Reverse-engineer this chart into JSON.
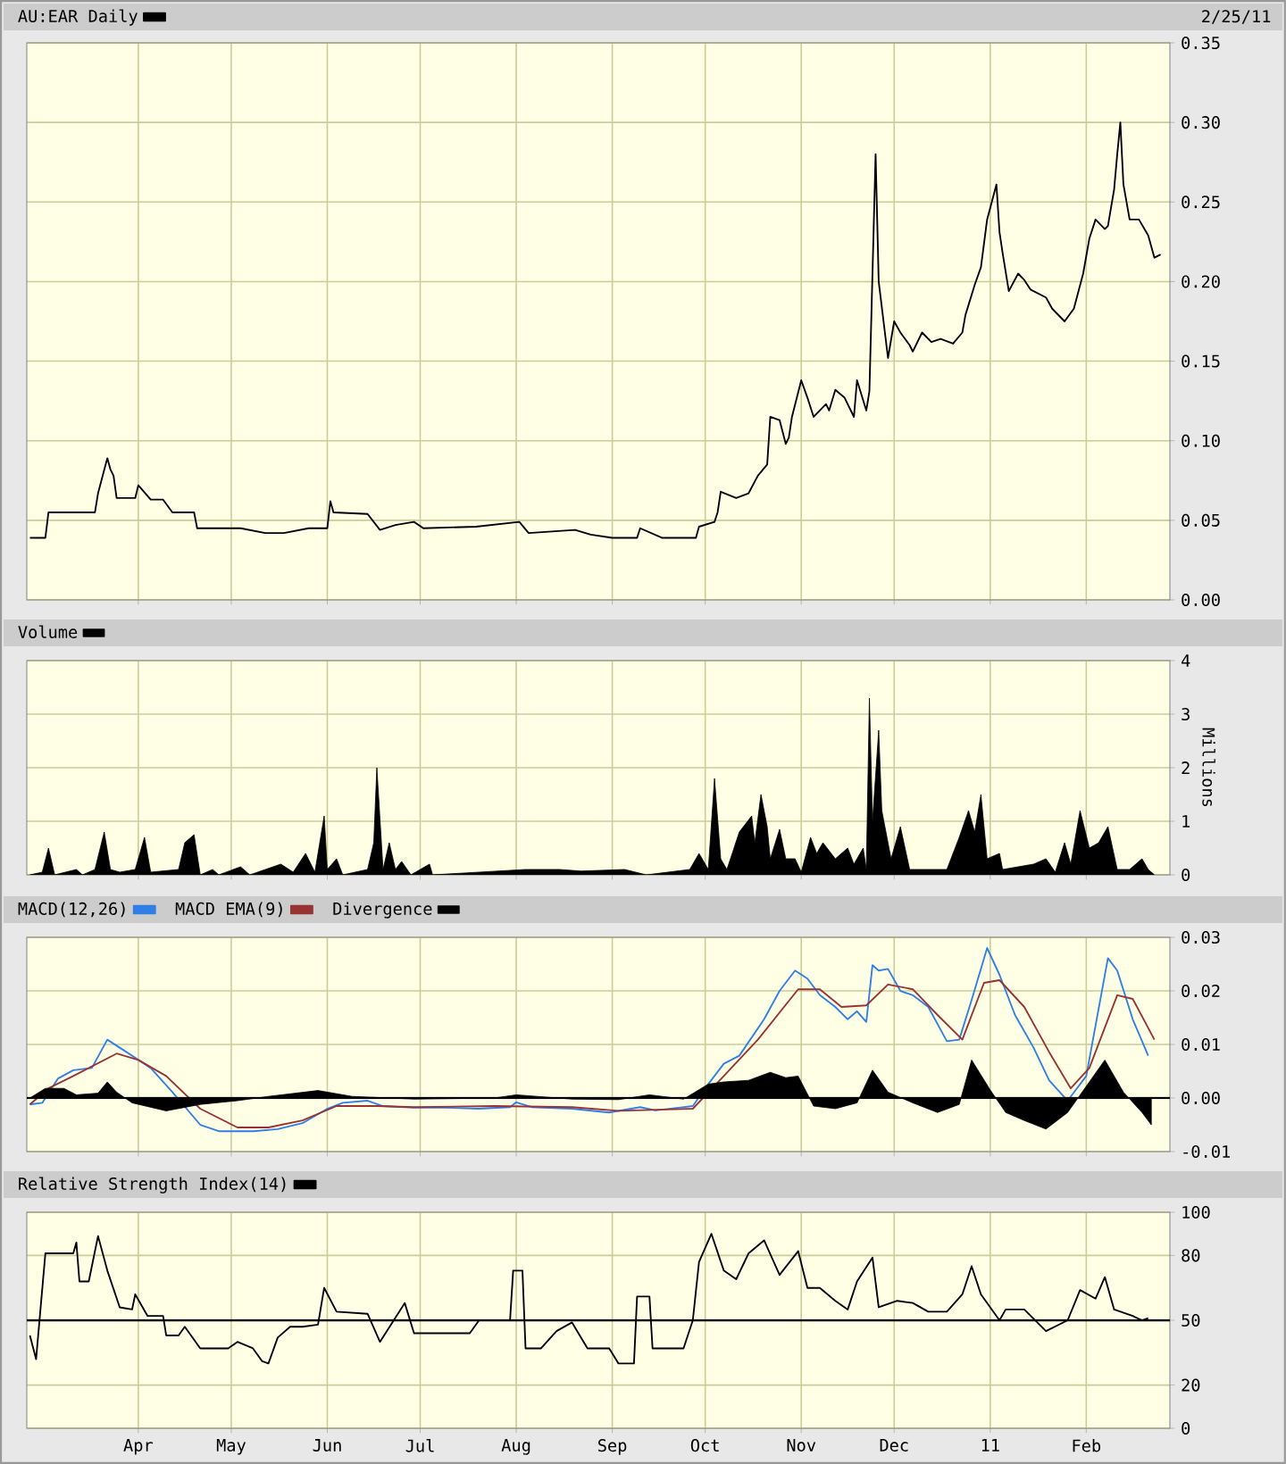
{
  "chart_data": [
    {
      "type": "line",
      "legend": "top left",
      "grid": true,
      "tick_labels": "y",
      "annotations": [
        "2/25/11"
      ],
      "xlim": [
        "2010-02-24",
        "2011-02-28"
      ],
      "xticks": [
        {
          "value": "2010-04-01",
          "label": null
        },
        {
          "value": "2010-05-01",
          "label": null
        },
        {
          "value": "2010-06-01",
          "label": null
        },
        {
          "value": "2010-07-01",
          "label": null
        },
        {
          "value": "2010-08-01",
          "label": null
        },
        {
          "value": "2010-09-01",
          "label": null
        },
        {
          "value": "2010-10-01",
          "label": null
        },
        {
          "value": "2010-11-01",
          "label": null
        },
        {
          "value": "2010-12-01",
          "label": null
        },
        {
          "value": "2011-01-01",
          "label": null
        },
        {
          "value": "2011-02-01",
          "label": null
        }
      ],
      "ylim": [
        0,
        0.35
      ],
      "yticks": [
        {
          "value": 0,
          "label": "0.00"
        },
        0.05,
        {
          "value": 0.1,
          "label": "0.10"
        },
        0.15,
        {
          "value": 0.2,
          "label": "0.20"
        },
        0.25,
        {
          "value": 0.3,
          "label": "0.30"
        },
        0.35
      ],
      "series": [
        {
          "name": "AU:EAR Daily",
          "color": "#000000",
          "x": [
            "2010-02-25",
            "2010-03-02",
            "2010-03-03",
            "2010-03-18",
            "2010-03-19",
            "2010-03-22",
            "2010-03-23",
            "2010-03-24",
            "2010-03-25",
            "2010-03-31",
            "2010-04-01",
            "2010-04-05",
            "2010-04-09",
            "2010-04-12",
            "2010-04-19",
            "2010-04-20",
            "2010-05-04",
            "2010-05-12",
            "2010-05-18",
            "2010-05-26",
            "2010-06-01",
            "2010-06-02",
            "2010-06-03",
            "2010-06-14",
            "2010-06-18",
            "2010-06-23",
            "2010-06-29",
            "2010-07-02",
            "2010-07-19",
            "2010-08-02",
            "2010-08-05",
            "2010-08-20",
            "2010-08-25",
            "2010-09-01",
            "2010-09-09",
            "2010-09-10",
            "2010-09-17",
            "2010-09-28",
            "2010-09-29",
            "2010-10-04",
            "2010-10-05",
            "2010-10-06",
            "2010-10-11",
            "2010-10-15",
            "2010-10-18",
            "2010-10-21",
            "2010-10-22",
            "2010-10-25",
            "2010-10-27",
            "2010-10-28",
            "2010-10-29",
            "2010-11-01",
            "2010-11-03",
            "2010-11-05",
            "2010-11-09",
            "2010-11-10",
            "2010-11-12",
            "2010-11-15",
            "2010-11-18",
            "2010-11-19",
            "2010-11-22",
            "2010-11-23",
            "2010-11-25",
            "2010-11-26",
            "2010-11-29",
            "2010-12-01",
            "2010-12-03",
            "2010-12-06",
            "2010-12-07",
            "2010-12-10",
            "2010-12-13",
            "2010-12-16",
            "2010-12-20",
            "2010-12-23",
            "2010-12-24",
            "2010-12-27",
            "2010-12-29",
            "2010-12-31",
            "2011-01-03",
            "2011-01-04",
            "2011-01-05",
            "2011-01-07",
            "2011-01-10",
            "2011-01-12",
            "2011-01-14",
            "2011-01-19",
            "2011-01-21",
            "2011-01-25",
            "2011-01-28",
            "2011-01-31",
            "2011-02-02",
            "2011-02-04",
            "2011-02-07",
            "2011-02-08",
            "2011-02-10",
            "2011-02-11",
            "2011-02-12",
            "2011-02-13",
            "2011-02-15",
            "2011-02-18",
            "2011-02-21",
            "2011-02-23",
            "2011-02-25"
          ],
          "values": [
            0.039,
            0.039,
            0.055,
            0.055,
            0.067,
            0.089,
            0.082,
            0.078,
            0.064,
            0.064,
            0.072,
            0.063,
            0.063,
            0.055,
            0.055,
            0.045,
            0.045,
            0.042,
            0.042,
            0.045,
            0.045,
            0.062,
            0.055,
            0.054,
            0.044,
            0.047,
            0.049,
            0.045,
            0.046,
            0.049,
            0.042,
            0.044,
            0.041,
            0.039,
            0.039,
            0.045,
            0.039,
            0.039,
            0.046,
            0.049,
            0.055,
            0.068,
            0.064,
            0.067,
            0.078,
            0.085,
            0.115,
            0.113,
            0.098,
            0.102,
            0.115,
            0.138,
            0.127,
            0.115,
            0.123,
            0.119,
            0.132,
            0.127,
            0.115,
            0.138,
            0.119,
            0.131,
            0.28,
            0.2,
            0.152,
            0.175,
            0.168,
            0.16,
            0.156,
            0.168,
            0.162,
            0.164,
            0.161,
            0.168,
            0.179,
            0.198,
            0.209,
            0.239,
            0.261,
            0.231,
            0.218,
            0.194,
            0.205,
            0.201,
            0.195,
            0.19,
            0.183,
            0.175,
            0.183,
            0.205,
            0.227,
            0.239,
            0.233,
            0.235,
            0.258,
            0.28,
            0.3,
            0.261,
            0.239,
            0.239,
            0.229,
            0.215,
            0.217
          ]
        }
      ]
    },
    {
      "type": "area",
      "legend": "top left",
      "grid": true,
      "tick_labels": "y",
      "ylabel": "Millions",
      "xlim": [
        "2010-02-24",
        "2011-02-28"
      ],
      "xticks": [
        {
          "value": "2010-04-01",
          "label": null
        },
        {
          "value": "2010-05-01",
          "label": null
        },
        {
          "value": "2010-06-01",
          "label": null
        },
        {
          "value": "2010-07-01",
          "label": null
        },
        {
          "value": "2010-08-01",
          "label": null
        },
        {
          "value": "2010-09-01",
          "label": null
        },
        {
          "value": "2010-10-01",
          "label": null
        },
        {
          "value": "2010-11-01",
          "label": null
        },
        {
          "value": "2010-12-01",
          "label": null
        },
        {
          "value": "2011-01-01",
          "label": null
        },
        {
          "value": "2011-02-01",
          "label": null
        }
      ],
      "ylim": [
        0,
        4
      ],
      "yticks": [
        0,
        1,
        2,
        3,
        4
      ],
      "series": [
        {
          "name": "Volume",
          "color": "#000000",
          "x": [
            "2010-02-25",
            "2010-03-01",
            "2010-03-03",
            "2010-03-05",
            "2010-03-12",
            "2010-03-14",
            "2010-03-18",
            "2010-03-21",
            "2010-03-23",
            "2010-03-26",
            "2010-03-31",
            "2010-04-03",
            "2010-04-05",
            "2010-04-14",
            "2010-04-16",
            "2010-04-19",
            "2010-04-21",
            "2010-04-25",
            "2010-04-27",
            "2010-05-04",
            "2010-05-07",
            "2010-05-17",
            "2010-05-21",
            "2010-05-25",
            "2010-05-28",
            "2010-05-31",
            "2010-06-01",
            "2010-06-04",
            "2010-06-06",
            "2010-06-14",
            "2010-06-16",
            "2010-06-17",
            "2010-06-19",
            "2010-06-21",
            "2010-06-23",
            "2010-06-25",
            "2010-06-28",
            "2010-07-04",
            "2010-07-05",
            "2010-08-04",
            "2010-08-15",
            "2010-08-22",
            "2010-09-05",
            "2010-09-12",
            "2010-09-26",
            "2010-09-29",
            "2010-10-02",
            "2010-10-04",
            "2010-10-06",
            "2010-10-08",
            "2010-10-12",
            "2010-10-16",
            "2010-10-17",
            "2010-10-19",
            "2010-10-21",
            "2010-10-22",
            "2010-10-25",
            "2010-10-27",
            "2010-10-30",
            "2010-11-01",
            "2010-11-04",
            "2010-11-06",
            "2010-11-08",
            "2010-11-12",
            "2010-11-16",
            "2010-11-18",
            "2010-11-21",
            "2010-11-22",
            "2010-11-23",
            "2010-11-24",
            "2010-11-26",
            "2010-11-27",
            "2010-11-30",
            "2010-12-03",
            "2010-12-06",
            "2010-12-10",
            "2010-12-18",
            "2010-12-22",
            "2010-12-25",
            "2010-12-27",
            "2010-12-29",
            "2010-12-31",
            "2011-01-04",
            "2011-01-05",
            "2011-01-15",
            "2011-01-19",
            "2011-01-22",
            "2011-01-25",
            "2011-01-27",
            "2011-01-30",
            "2011-02-02",
            "2011-02-05",
            "2011-02-08",
            "2011-02-11",
            "2011-02-15",
            "2011-02-19",
            "2011-02-21",
            "2011-02-23"
          ],
          "values": [
            0,
            0.05,
            0.5,
            0,
            0.1,
            0,
            0.1,
            0.8,
            0.1,
            0.05,
            0.1,
            0.7,
            0.05,
            0.1,
            0.6,
            0.75,
            0,
            0.1,
            0,
            0.15,
            0,
            0.2,
            0.05,
            0.4,
            0.05,
            1.1,
            0.1,
            0.3,
            0,
            0.1,
            0.6,
            2.0,
            0.1,
            0.6,
            0.1,
            0.25,
            0,
            0.2,
            0,
            0.1,
            0.1,
            0.07,
            0.1,
            0,
            0.1,
            0.4,
            0.1,
            1.8,
            0.3,
            0.1,
            0.8,
            1.1,
            0.6,
            1.5,
            0.9,
            0.3,
            0.85,
            0.3,
            0.3,
            0.05,
            0.7,
            0.4,
            0.6,
            0.3,
            0.5,
            0.2,
            0.5,
            0.1,
            3.3,
            1.0,
            2.7,
            1.2,
            0.3,
            0.9,
            0.1,
            0.1,
            0.1,
            0.7,
            1.2,
            0.8,
            1.5,
            0.3,
            0.4,
            0.1,
            0.2,
            0.3,
            0.05,
            0.6,
            0.2,
            1.2,
            0.5,
            0.6,
            0.9,
            0.1,
            0.1,
            0.3,
            0.1,
            0
          ]
        }
      ]
    },
    {
      "type": "line",
      "legend": "top left",
      "grid": true,
      "tick_labels": "y",
      "xlim": [
        "2010-02-24",
        "2011-02-28"
      ],
      "xticks": [
        {
          "value": "2010-04-01",
          "label": null
        },
        {
          "value": "2010-05-01",
          "label": null
        },
        {
          "value": "2010-06-01",
          "label": null
        },
        {
          "value": "2010-07-01",
          "label": null
        },
        {
          "value": "2010-08-01",
          "label": null
        },
        {
          "value": "2010-09-01",
          "label": null
        },
        {
          "value": "2010-10-01",
          "label": null
        },
        {
          "value": "2010-11-01",
          "label": null
        },
        {
          "value": "2010-12-01",
          "label": null
        },
        {
          "value": "2011-01-01",
          "label": null
        },
        {
          "value": "2011-02-01",
          "label": null
        }
      ],
      "ylim": [
        -0.01,
        0.03
      ],
      "yticks": [
        -0.01,
        {
          "value": 0,
          "label": "0.00"
        },
        0.01,
        0.02,
        0.03
      ],
      "ref_lines": [
        {
          "axis": "y",
          "value": 0,
          "color": "#000000"
        }
      ],
      "series": [
        {
          "name": "MACD(12,26)",
          "color": "#2f7fe6",
          "x": [
            "2010-02-25",
            "2010-03-01",
            "2010-03-06",
            "2010-03-11",
            "2010-03-17",
            "2010-03-22",
            "2010-03-26",
            "2010-03-30",
            "2010-04-05",
            "2010-04-12",
            "2010-04-21",
            "2010-04-27",
            "2010-05-08",
            "2010-05-16",
            "2010-05-24",
            "2010-06-01",
            "2010-06-06",
            "2010-06-14",
            "2010-06-19",
            "2010-06-29",
            "2010-07-09",
            "2010-07-20",
            "2010-07-30",
            "2010-08-01",
            "2010-08-06",
            "2010-08-19",
            "2010-08-31",
            "2010-09-10",
            "2010-09-15",
            "2010-09-27",
            "2010-10-02",
            "2010-10-07",
            "2010-10-12",
            "2010-10-20",
            "2010-10-25",
            "2010-10-30",
            "2010-11-03",
            "2010-11-07",
            "2010-11-12",
            "2010-11-16",
            "2010-11-19",
            "2010-11-22",
            "2010-11-24",
            "2010-11-26",
            "2010-11-29",
            "2010-12-03",
            "2010-12-07",
            "2010-12-12",
            "2010-12-18",
            "2010-12-22",
            "2010-12-26",
            "2010-12-31",
            "2011-01-04",
            "2011-01-09",
            "2011-01-15",
            "2011-01-20",
            "2011-01-26",
            "2011-02-01",
            "2011-02-08",
            "2011-02-11",
            "2011-02-16",
            "2011-02-21"
          ],
          "values": [
            -0.0012,
            -0.0009,
            0.0036,
            0.0052,
            0.0056,
            0.0109,
            0.0094,
            0.0079,
            0.0056,
            0.0011,
            -0.005,
            -0.0062,
            -0.0062,
            -0.0058,
            -0.0047,
            -0.002,
            -0.0009,
            -0.0005,
            -0.0015,
            -0.0018,
            -0.0018,
            -0.002,
            -0.0017,
            -0.0008,
            -0.0017,
            -0.002,
            -0.0027,
            -0.0017,
            -0.0023,
            -0.0015,
            0.0026,
            0.0064,
            0.0079,
            0.0147,
            0.02,
            0.0238,
            0.0223,
            0.0192,
            0.017,
            0.0147,
            0.0162,
            0.0142,
            0.0248,
            0.0238,
            0.0241,
            0.02,
            0.0192,
            0.017,
            0.0106,
            0.0109,
            0.0183,
            0.028,
            0.023,
            0.0155,
            0.0094,
            0.0033,
            -0.0005,
            0.0041,
            0.0261,
            0.0238,
            0.0147,
            0.0079
          ]
        },
        {
          "name": "MACD EMA(9)",
          "color": "#993333",
          "x": [
            "2010-02-25",
            "2010-03-03",
            "2010-03-11",
            "2010-03-25",
            "2010-04-01",
            "2010-04-10",
            "2010-04-21",
            "2010-05-03",
            "2010-05-13",
            "2010-05-24",
            "2010-06-04",
            "2010-06-17",
            "2010-06-29",
            "2010-07-25",
            "2010-08-19",
            "2010-09-03",
            "2010-09-27",
            "2010-10-07",
            "2010-10-18",
            "2010-10-31",
            "2010-11-07",
            "2010-11-14",
            "2010-11-22",
            "2010-11-29",
            "2010-12-07",
            "2010-12-15",
            "2010-12-23",
            "2010-12-30",
            "2011-01-04",
            "2011-01-12",
            "2011-01-20",
            "2011-01-27",
            "2011-02-02",
            "2011-02-11",
            "2011-02-16",
            "2011-02-23"
          ],
          "values": [
            -0.0012,
            0.0018,
            0.0041,
            0.0083,
            0.0071,
            0.0041,
            -0.002,
            -0.0055,
            -0.0055,
            -0.0042,
            -0.0015,
            -0.0015,
            -0.0017,
            -0.0015,
            -0.0017,
            -0.0024,
            -0.002,
            0.0041,
            0.0109,
            0.0203,
            0.0203,
            0.017,
            0.0173,
            0.0212,
            0.0203,
            0.0155,
            0.0109,
            0.0215,
            0.022,
            0.017,
            0.0086,
            0.0018,
            0.0056,
            0.0192,
            0.0185,
            0.0109
          ]
        },
        {
          "name": "Divergence",
          "type": "area",
          "color": "#000000",
          "x": [
            "2010-02-25",
            "2010-03-02",
            "2010-03-08",
            "2010-03-12",
            "2010-03-19",
            "2010-03-22",
            "2010-03-25",
            "2010-03-30",
            "2010-04-10",
            "2010-04-21",
            "2010-05-03",
            "2010-05-13",
            "2010-05-29",
            "2010-06-09",
            "2010-06-29",
            "2010-07-25",
            "2010-08-01",
            "2010-08-19",
            "2010-09-03",
            "2010-09-13",
            "2010-09-24",
            "2010-10-02",
            "2010-10-07",
            "2010-10-15",
            "2010-10-22",
            "2010-10-27",
            "2010-10-31",
            "2010-11-05",
            "2010-11-12",
            "2010-11-19",
            "2010-11-24",
            "2010-11-29",
            "2010-12-07",
            "2010-12-15",
            "2010-12-22",
            "2010-12-26",
            "2011-01-01",
            "2011-01-06",
            "2011-01-12",
            "2011-01-19",
            "2011-01-26",
            "2011-02-02",
            "2011-02-07",
            "2011-02-13",
            "2011-02-19",
            "2011-02-22"
          ],
          "values": [
            0,
            0.0018,
            0.0018,
            0.0006,
            0.0009,
            0.003,
            0.0011,
            -0.0009,
            -0.0024,
            -0.0012,
            -0.0005,
            0.0003,
            0.0014,
            0.0003,
            -0.0002,
            0,
            0.0006,
            -0.0002,
            -0.0003,
            0.0006,
            -0.0002,
            0.0026,
            0.003,
            0.0033,
            0.0048,
            0.0038,
            0.0041,
            -0.0015,
            -0.002,
            -0.0009,
            0.0052,
            0.0011,
            -0.0009,
            -0.0027,
            -0.0012,
            0.0071,
            0.0015,
            -0.0027,
            -0.0042,
            -0.0058,
            -0.0027,
            0.003,
            0.0071,
            0.0011,
            -0.0027,
            -0.005
          ]
        }
      ]
    },
    {
      "type": "line",
      "legend": "top left",
      "grid": true,
      "xlim": [
        "2010-02-24",
        "2011-02-28"
      ],
      "xticks": [
        {
          "value": "2010-04-01",
          "label": "Apr"
        },
        {
          "value": "2010-05-01",
          "label": "May"
        },
        {
          "value": "2010-06-01",
          "label": "Jun"
        },
        {
          "value": "2010-07-01",
          "label": "Jul"
        },
        {
          "value": "2010-08-01",
          "label": "Aug"
        },
        {
          "value": "2010-09-01",
          "label": "Sep"
        },
        {
          "value": "2010-10-01",
          "label": "Oct"
        },
        {
          "value": "2010-11-01",
          "label": "Nov"
        },
        {
          "value": "2010-12-01",
          "label": "Dec"
        },
        {
          "value": "2011-01-01",
          "label": "11"
        },
        {
          "value": "2011-02-01",
          "label": "Feb"
        }
      ],
      "ylim": [
        0,
        100
      ],
      "yticks": [
        0,
        20,
        50,
        80,
        100
      ],
      "ref_lines": [
        {
          "axis": "y",
          "value": 50,
          "color": "#000000"
        }
      ],
      "series": [
        {
          "name": "Relative Strength Index(14)",
          "color": "#000000",
          "x": [
            "2010-02-25",
            "2010-02-27",
            "2010-03-02",
            "2010-03-11",
            "2010-03-12",
            "2010-03-13",
            "2010-03-16",
            "2010-03-19",
            "2010-03-22",
            "2010-03-26",
            "2010-03-30",
            "2010-03-31",
            "2010-04-04",
            "2010-04-09",
            "2010-04-10",
            "2010-04-14",
            "2010-04-16",
            "2010-04-21",
            "2010-04-30",
            "2010-05-03",
            "2010-05-08",
            "2010-05-11",
            "2010-05-13",
            "2010-05-16",
            "2010-05-20",
            "2010-05-24",
            "2010-05-29",
            "2010-05-31",
            "2010-06-04",
            "2010-06-14",
            "2010-06-18",
            "2010-06-22",
            "2010-06-26",
            "2010-06-29",
            "2010-07-17",
            "2010-07-20",
            "2010-07-30",
            "2010-07-31",
            "2010-08-03",
            "2010-08-04",
            "2010-08-09",
            "2010-08-14",
            "2010-08-19",
            "2010-08-24",
            "2010-08-31",
            "2010-09-03",
            "2010-09-08",
            "2010-09-09",
            "2010-09-13",
            "2010-09-14",
            "2010-09-24",
            "2010-09-27",
            "2010-09-29",
            "2010-10-03",
            "2010-10-07",
            "2010-10-11",
            "2010-10-15",
            "2010-10-20",
            "2010-10-25",
            "2010-10-31",
            "2010-11-03",
            "2010-11-07",
            "2010-11-12",
            "2010-11-16",
            "2010-11-19",
            "2010-11-24",
            "2010-11-26",
            "2010-12-02",
            "2010-12-07",
            "2010-12-12",
            "2010-12-18",
            "2010-12-23",
            "2010-12-26",
            "2010-12-29",
            "2011-01-04",
            "2011-01-06",
            "2011-01-12",
            "2011-01-19",
            "2011-01-26",
            "2011-01-30",
            "2011-02-04",
            "2011-02-07",
            "2011-02-10",
            "2011-02-16",
            "2011-02-19",
            "2011-02-21"
          ],
          "values": [
            43,
            32,
            81,
            81,
            86,
            68,
            68,
            89,
            73,
            56,
            55,
            62,
            52,
            52,
            43,
            43,
            47,
            37,
            37,
            40,
            37,
            31,
            30,
            42,
            47,
            47,
            48,
            65,
            54,
            53,
            40,
            49,
            58,
            44,
            44,
            50,
            50,
            73,
            73,
            37,
            37,
            45,
            49,
            37,
            37,
            30,
            30,
            61,
            61,
            37,
            37,
            50,
            77,
            90,
            73,
            69,
            81,
            87,
            71,
            82,
            65,
            65,
            59,
            55,
            68,
            79,
            56,
            59,
            58,
            54,
            54,
            62,
            75,
            62,
            50,
            55,
            55,
            45,
            50,
            64,
            60,
            70,
            55,
            52,
            50,
            51
          ]
        }
      ]
    }
  ]
}
